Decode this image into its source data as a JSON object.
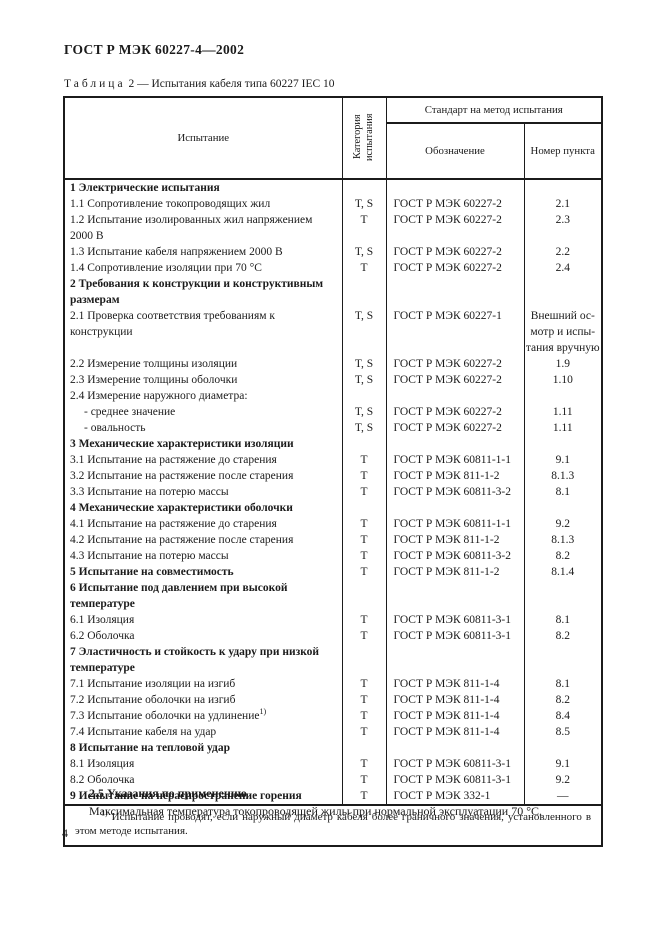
{
  "page": {
    "doc_header": "ГОСТ Р МЭК 60227-4—2002",
    "page_number": "4"
  },
  "table": {
    "caption": {
      "word": "Таблица",
      "number": "2",
      "dash": "—",
      "title": "Испытания кабеля типа 60227 IEC 10"
    },
    "columns": {
      "test": "Испытание",
      "category": "Категория испытания",
      "standard_group": "Стандарт на метод испытания",
      "designation": "Обозначение",
      "clause": "Номер пункта"
    },
    "rows": [
      {
        "bold": true,
        "name": [
          "1 Электрические испытания"
        ],
        "cat": [],
        "std": [],
        "clause": []
      },
      {
        "bold": false,
        "name": [
          "1.1 Сопротивление токопроводящих жил"
        ],
        "cat": [
          "T, S"
        ],
        "std": [
          "ГОСТ Р МЭК 60227-2"
        ],
        "clause": [
          "2.1"
        ]
      },
      {
        "bold": false,
        "name": [
          "1.2 Испытание изолированных жил напряжением 2000 В"
        ],
        "cat": [
          "T"
        ],
        "std": [
          "ГОСТ Р МЭК 60227-2"
        ],
        "clause": [
          "2.3"
        ]
      },
      {
        "bold": false,
        "name": [
          "1.3 Испытание кабеля напряжением 2000 В"
        ],
        "cat": [
          "T, S"
        ],
        "std": [
          "ГОСТ Р МЭК 60227-2"
        ],
        "clause": [
          "2.2"
        ]
      },
      {
        "bold": false,
        "name": [
          "1.4 Сопротивление изоляции при 70 °С"
        ],
        "cat": [
          "T"
        ],
        "std": [
          "ГОСТ Р МЭК 60227-2"
        ],
        "clause": [
          "2.4"
        ]
      },
      {
        "bold": true,
        "name": [
          "2 Требования к конструкции и конструктивным размерам"
        ],
        "cat": [],
        "std": [],
        "clause": []
      },
      {
        "bold": false,
        "name": [
          "2.1 Проверка соответствия требованиям к конструкции"
        ],
        "cat": [
          "T, S"
        ],
        "std": [
          "ГОСТ Р МЭК 60227-1"
        ],
        "clause": [
          "Внешний ос-",
          "мотр и испы-",
          "тания вручную"
        ]
      },
      {
        "bold": false,
        "name": [
          "2.2 Измерение толщины изоляции"
        ],
        "cat": [
          "T, S"
        ],
        "std": [
          "ГОСТ Р МЭК 60227-2"
        ],
        "clause": [
          "1.9"
        ]
      },
      {
        "bold": false,
        "name": [
          "2.3 Измерение толщины оболочки"
        ],
        "cat": [
          "T, S"
        ],
        "std": [
          "ГОСТ Р МЭК 60227-2"
        ],
        "clause": [
          "1.10"
        ]
      },
      {
        "bold": false,
        "name": [
          "2.4 Измерение наружного диаметра:",
          "- среднее значение",
          "- овальность"
        ],
        "cat": [
          "",
          "T, S",
          "T, S"
        ],
        "std": [
          "",
          "ГОСТ Р МЭК 60227-2",
          "ГОСТ Р МЭК 60227-2"
        ],
        "clause": [
          "",
          "1.11",
          "1.11"
        ]
      },
      {
        "bold": true,
        "name": [
          "3 Механические характеристики изоляции"
        ],
        "cat": [],
        "std": [],
        "clause": []
      },
      {
        "bold": false,
        "name": [
          "3.1 Испытание на растяжение до старения"
        ],
        "cat": [
          "T"
        ],
        "std": [
          "ГОСТ Р МЭК 60811-1-1"
        ],
        "clause": [
          "9.1"
        ]
      },
      {
        "bold": false,
        "name": [
          "3.2 Испытание на растяжение после старения"
        ],
        "cat": [
          "T"
        ],
        "std": [
          "ГОСТ Р МЭК 811-1-2"
        ],
        "clause": [
          "8.1.3"
        ]
      },
      {
        "bold": false,
        "name": [
          "3.3 Испытание на потерю массы"
        ],
        "cat": [
          "T"
        ],
        "std": [
          "ГОСТ Р МЭК 60811-3-2"
        ],
        "clause": [
          "8.1"
        ]
      },
      {
        "bold": true,
        "name": [
          "4 Механические характеристики оболочки"
        ],
        "cat": [],
        "std": [],
        "clause": []
      },
      {
        "bold": false,
        "name": [
          "4.1 Испытание на растяжение до старения"
        ],
        "cat": [
          "T"
        ],
        "std": [
          "ГОСТ Р МЭК 60811-1-1"
        ],
        "clause": [
          "9.2"
        ]
      },
      {
        "bold": false,
        "name": [
          "4.2 Испытание на растяжение после старения"
        ],
        "cat": [
          "T"
        ],
        "std": [
          "ГОСТ Р МЭК 811-1-2"
        ],
        "clause": [
          "8.1.3"
        ]
      },
      {
        "bold": false,
        "name": [
          "4.3 Испытание на потерю массы"
        ],
        "cat": [
          "T"
        ],
        "std": [
          "ГОСТ Р МЭК 60811-3-2"
        ],
        "clause": [
          "8.2"
        ]
      },
      {
        "bold": true,
        "name": [
          "5 Испытание на совместимость"
        ],
        "cat": [
          "T"
        ],
        "std": [
          "ГОСТ Р МЭК 811-1-2"
        ],
        "clause": [
          "8.1.4"
        ]
      },
      {
        "bold": true,
        "name": [
          "6 Испытание под давлением при высокой температуре"
        ],
        "cat": [],
        "std": [],
        "clause": []
      },
      {
        "bold": false,
        "name": [
          "6.1 Изоляция"
        ],
        "cat": [
          "T"
        ],
        "std": [
          "ГОСТ Р МЭК 60811-3-1"
        ],
        "clause": [
          "8.1"
        ]
      },
      {
        "bold": false,
        "name": [
          "6.2 Оболочка"
        ],
        "cat": [
          "T"
        ],
        "std": [
          "ГОСТ Р МЭК 60811-3-1"
        ],
        "clause": [
          "8.2"
        ]
      },
      {
        "bold": true,
        "name": [
          "7 Эластичность и стойкость к удару при низкой температуре"
        ],
        "cat": [],
        "std": [],
        "clause": []
      },
      {
        "bold": false,
        "name": [
          "7.1 Испытание изоляции на изгиб"
        ],
        "cat": [
          "T"
        ],
        "std": [
          "ГОСТ Р МЭК 811-1-4"
        ],
        "clause": [
          "8.1"
        ]
      },
      {
        "bold": false,
        "name": [
          "7.2 Испытание оболочки на изгиб"
        ],
        "cat": [
          "T"
        ],
        "std": [
          "ГОСТ Р МЭК 811-1-4"
        ],
        "clause": [
          "8.2"
        ]
      },
      {
        "bold": false,
        "name": [
          "7.3 Испытание оболочки на удлинение"
        ],
        "sup": "1)",
        "cat": [
          "T"
        ],
        "std": [
          "ГОСТ Р МЭК 811-1-4"
        ],
        "clause": [
          "8.4"
        ]
      },
      {
        "bold": false,
        "name": [
          "7.4 Испытание кабеля на удар"
        ],
        "cat": [
          "T"
        ],
        "std": [
          "ГОСТ Р МЭК 811-1-4"
        ],
        "clause": [
          "8.5"
        ]
      },
      {
        "bold": true,
        "name": [
          "8 Испытание на тепловой удар"
        ],
        "cat": [],
        "std": [],
        "clause": []
      },
      {
        "bold": false,
        "name": [
          "8.1 Изоляция"
        ],
        "cat": [
          "T"
        ],
        "std": [
          "ГОСТ Р МЭК 60811-3-1"
        ],
        "clause": [
          "9.1"
        ]
      },
      {
        "bold": false,
        "name": [
          "8.2 Оболочка"
        ],
        "cat": [
          "T"
        ],
        "std": [
          "ГОСТ Р МЭК 60811-3-1"
        ],
        "clause": [
          "9.2"
        ]
      },
      {
        "bold": true,
        "name": [
          "9 Испытание на нераспространение горения"
        ],
        "cat": [
          "T"
        ],
        "std": [
          "ГОСТ Р МЭК 332-1"
        ],
        "clause": [
          "—"
        ]
      }
    ],
    "footnote": {
      "marker": "1)",
      "text": "Испытание проводят, если наружный диаметр кабеля более граничного значения, установленного в этом методе испытания."
    }
  },
  "bottom": {
    "section_heading": "2.5 Указания по применению",
    "paragraph": "Максимальная температура токопроводящей жилы при нормальной эксплуатации 70 °С."
  }
}
